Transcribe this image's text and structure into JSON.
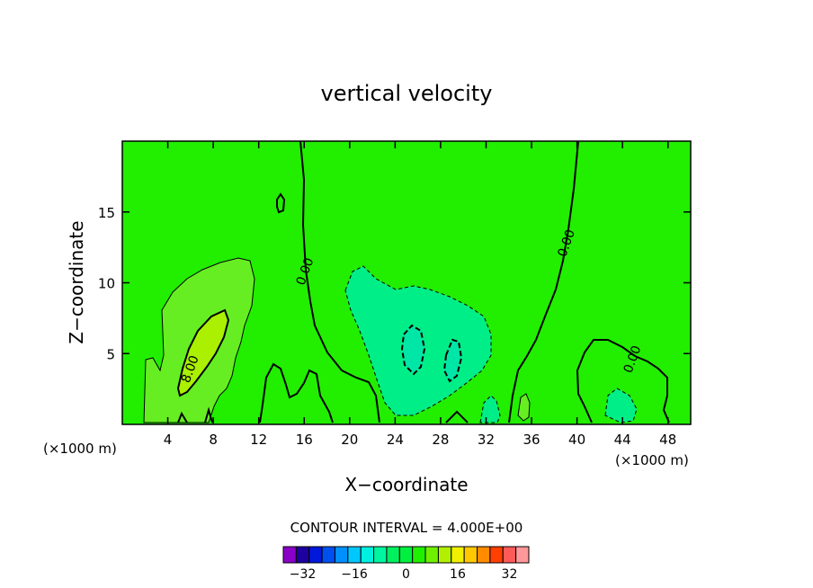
{
  "chart_data": {
    "type": "heatmap",
    "title": "vertical velocity",
    "xlabel": "X−coordinate",
    "ylabel": "Z−coordinate",
    "x_unit_left": "(×1000 m)",
    "x_unit_right": "(×1000 m)",
    "xlim": [
      0,
      50
    ],
    "ylim": [
      0,
      20
    ],
    "xticks": [
      4,
      8,
      12,
      16,
      20,
      24,
      28,
      32,
      36,
      40,
      44,
      48
    ],
    "yticks": [
      5,
      10,
      15
    ],
    "contour_labels": [
      {
        "text": "8.00",
        "x": 6.3,
        "y": 3.8
      },
      {
        "text": "0.00",
        "x": 16.4,
        "y": 10.7
      },
      {
        "text": "0.00",
        "x": 39.4,
        "y": 12.7
      },
      {
        "text": "0.00",
        "x": 45.2,
        "y": 4.5
      }
    ],
    "contour_interval_text": "CONTOUR INTERVAL = 4.000E+00",
    "colorbar": {
      "levels": [
        -36,
        -32,
        -28,
        -24,
        -20,
        -16,
        -12,
        -8,
        -4,
        0,
        4,
        8,
        12,
        16,
        20,
        24,
        28,
        32,
        36
      ],
      "tick_labels": [
        "−32",
        "−16",
        "0",
        "16",
        "32"
      ],
      "tick_values": [
        -32,
        -16,
        0,
        16,
        32
      ],
      "colors": [
        "#8a00c8",
        "#1e00a0",
        "#0018dc",
        "#0050f0",
        "#0090ff",
        "#00c8ff",
        "#00f0e0",
        "#00f5a0",
        "#00f060",
        "#00f040",
        "#20f000",
        "#70f000",
        "#b0f000",
        "#f0f000",
        "#ffc800",
        "#ff8c00",
        "#ff4000",
        "#ff5a5a",
        "#ff9898"
      ]
    },
    "regions": [
      {
        "name": "background",
        "value": 0,
        "color": "#22ee00"
      },
      {
        "name": "updraft-outer",
        "value": 4,
        "color": "#66ee22"
      },
      {
        "name": "updraft-core",
        "value": 8,
        "color": "#aaf000"
      },
      {
        "name": "downdraft-center",
        "value": -4,
        "color": "#00ee88"
      },
      {
        "name": "downdraft-core",
        "value": -8,
        "color": "#00e6a6"
      },
      {
        "name": "downdraft-right",
        "value": -4,
        "color": "#00ee88"
      }
    ]
  }
}
